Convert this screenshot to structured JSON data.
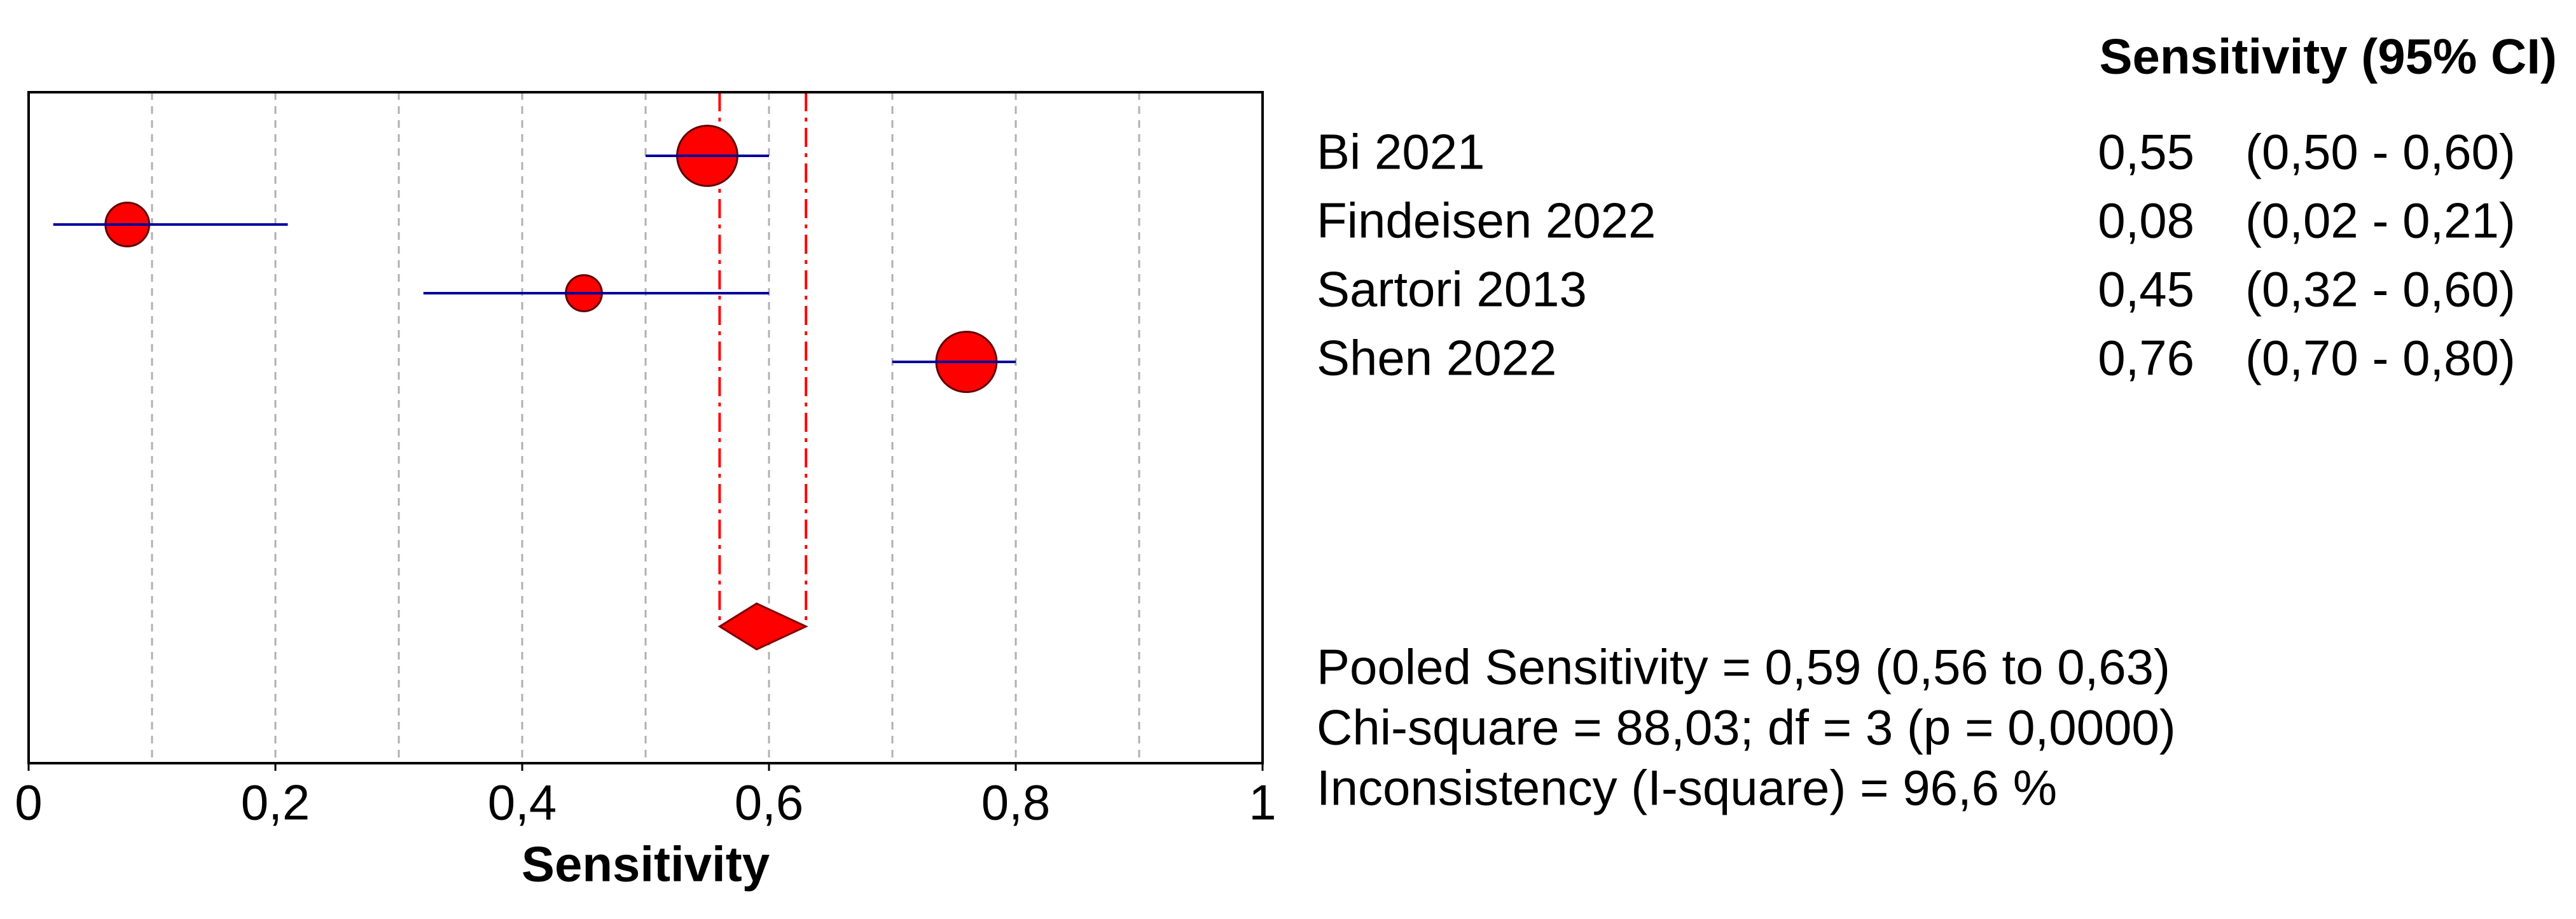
{
  "chart_data": {
    "type": "forest",
    "xlabel": "Sensitivity",
    "column_header": "Sensitivity (95% CI)",
    "categories": [
      "Bi 2021",
      "Findeisen 2022",
      "Sartori 2013",
      "Shen 2022"
    ],
    "values": [
      0.55,
      0.08,
      0.45,
      0.76
    ],
    "value_labels": [
      "0,55",
      "0,08",
      "0,45",
      "0,76"
    ],
    "ci_low": [
      0.5,
      0.02,
      0.32,
      0.7
    ],
    "ci_high": [
      0.6,
      0.21,
      0.6,
      0.8
    ],
    "ci_labels": [
      "(0,50 - 0,60)",
      "(0,02 - 0,21)",
      "(0,32 - 0,60)",
      "(0,70 - 0,80)"
    ],
    "pooled": {
      "value": 0.59,
      "low": 0.56,
      "high": 0.63,
      "label": "Pooled Sensitivity = 0,59 (0,56 to 0,63)"
    },
    "stats": [
      "Chi-square = 88,03; df =  3 (p = 0,0000)",
      "Inconsistency (I-square) = 96,6 %"
    ],
    "xlim": [
      0,
      1
    ],
    "xticks": [
      0,
      {
        "value": 0.2,
        "label": "0,2"
      },
      {
        "value": 0.4,
        "label": "0,4"
      },
      {
        "value": 0.6,
        "label": "0,6"
      },
      {
        "value": 0.8,
        "label": "0,8"
      },
      1
    ],
    "xgrid": [
      0.1,
      0.2,
      0.3,
      0.4,
      0.5,
      0.6,
      0.7,
      0.8,
      0.9
    ],
    "marker_color": "#ff0000",
    "ci_color": "#00009c"
  }
}
